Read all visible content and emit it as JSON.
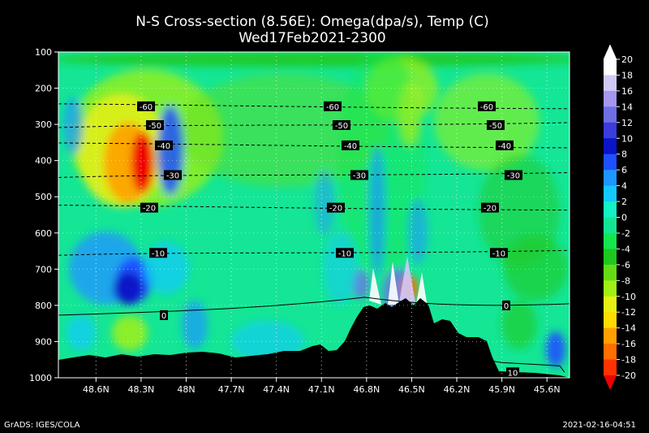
{
  "chart_data": {
    "type": "heatmap",
    "title": "N-S Cross-section (8.56E): Omega(dpa/s), Temp (C)",
    "subtitle": "Wed17Feb2021-2300",
    "y_axis": {
      "ticks": [
        "100",
        "200",
        "300",
        "400",
        "500",
        "600",
        "700",
        "800",
        "900",
        "1000"
      ],
      "range": [
        100,
        1000
      ],
      "inverted": true
    },
    "x_axis": {
      "ticks": [
        "48.6N",
        "48.3N",
        "48N",
        "47.7N",
        "47.4N",
        "47.1N",
        "46.8N",
        "46.5N",
        "46.2N",
        "45.9N",
        "45.6N"
      ],
      "range_lat": [
        48.85,
        45.45
      ]
    },
    "temperature_contours": [
      {
        "label": "-60",
        "level_hpa": 250
      },
      {
        "label": "-50",
        "level_hpa": 302
      },
      {
        "label": "-40",
        "level_hpa": 358
      },
      {
        "label": "-30",
        "level_hpa": 440
      },
      {
        "label": "-20",
        "level_hpa": 530
      },
      {
        "label": "-10",
        "level_hpa": 655
      },
      {
        "label": "0",
        "level_hpa": 818
      },
      {
        "label": "10",
        "level_hpa": 985
      }
    ],
    "colorbar": {
      "labels": [
        "20",
        "18",
        "16",
        "14",
        "12",
        "10",
        "8",
        "6",
        "4",
        "2",
        "0",
        "-2",
        "-4",
        "-6",
        "-8",
        "-10",
        "-12",
        "-14",
        "-16",
        "-18",
        "-20"
      ],
      "colors": [
        "#ffffff",
        "#d2c8f5",
        "#a596f0",
        "#6e6ee6",
        "#3c3cdc",
        "#0a14c8",
        "#1e50ff",
        "#1e96ff",
        "#14c8ff",
        "#14f0c8",
        "#14e696",
        "#14e650",
        "#1ec81e",
        "#64dc14",
        "#a0f014",
        "#e6f014",
        "#ffdc00",
        "#ffa000",
        "#ff6e00",
        "#ff3200",
        "#f00000"
      ]
    },
    "terrain_color": "#000000",
    "background_color": "#14e696"
  },
  "footer": {
    "left": "GrADS: IGES/COLA",
    "right": "2021-02-16-04:51"
  }
}
